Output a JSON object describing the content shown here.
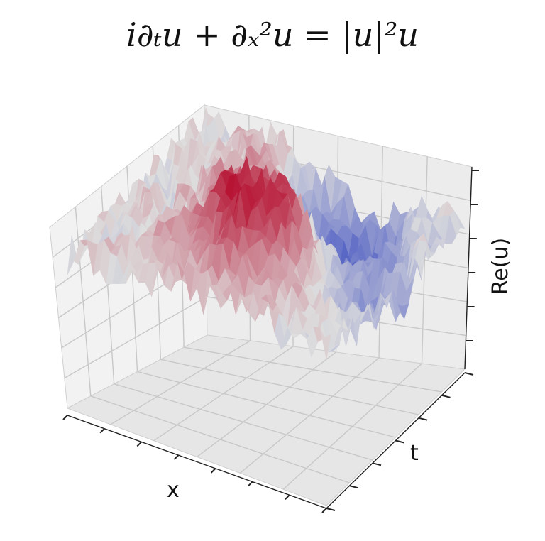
{
  "chart_data": {
    "type": "surface",
    "title": "i∂ₜu + ∂ₓ²u = |u|²u",
    "xlabel": "x",
    "ylabel": "t",
    "zlabel": "Re(u)",
    "colormap": [
      "#3b4cc0",
      "#dddddd",
      "#b40426"
    ],
    "grid": true,
    "tick_labels": "none"
  }
}
